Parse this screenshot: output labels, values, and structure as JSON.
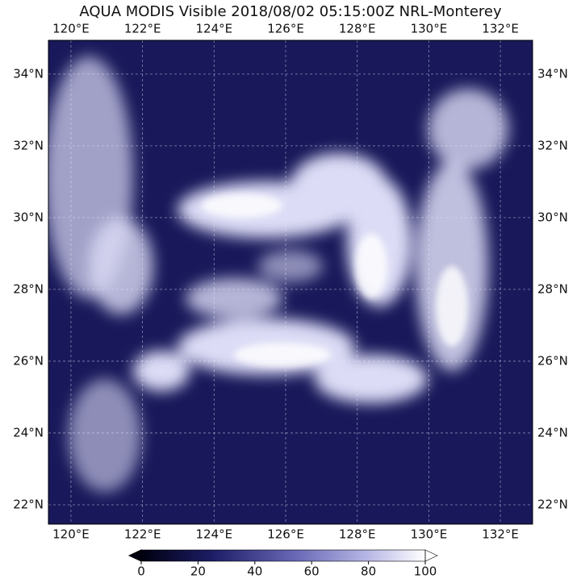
{
  "title": "AQUA MODIS Visible 2018/08/02 05:15:00Z NRL-Monterey",
  "map": {
    "xlim": [
      119.37,
      132.9
    ],
    "ylim": [
      21.46,
      34.94
    ],
    "xticks": [
      {
        "value": 120,
        "label": "120°E"
      },
      {
        "value": 122,
        "label": "122°E"
      },
      {
        "value": 124,
        "label": "124°E"
      },
      {
        "value": 126,
        "label": "126°E"
      },
      {
        "value": 128,
        "label": "128°E"
      },
      {
        "value": 130,
        "label": "130°E"
      },
      {
        "value": 132,
        "label": "132°E"
      }
    ],
    "yticks": [
      {
        "value": 22,
        "label": "22°N"
      },
      {
        "value": 24,
        "label": "24°N"
      },
      {
        "value": 26,
        "label": "26°N"
      },
      {
        "value": 28,
        "label": "28°N"
      },
      {
        "value": 30,
        "label": "30°N"
      },
      {
        "value": 32,
        "label": "32°N"
      },
      {
        "value": 34,
        "label": "34°N"
      }
    ]
  },
  "colorbar": {
    "lim": [
      0,
      100
    ],
    "ticks": [
      0,
      20,
      40,
      60,
      80,
      100
    ]
  }
}
